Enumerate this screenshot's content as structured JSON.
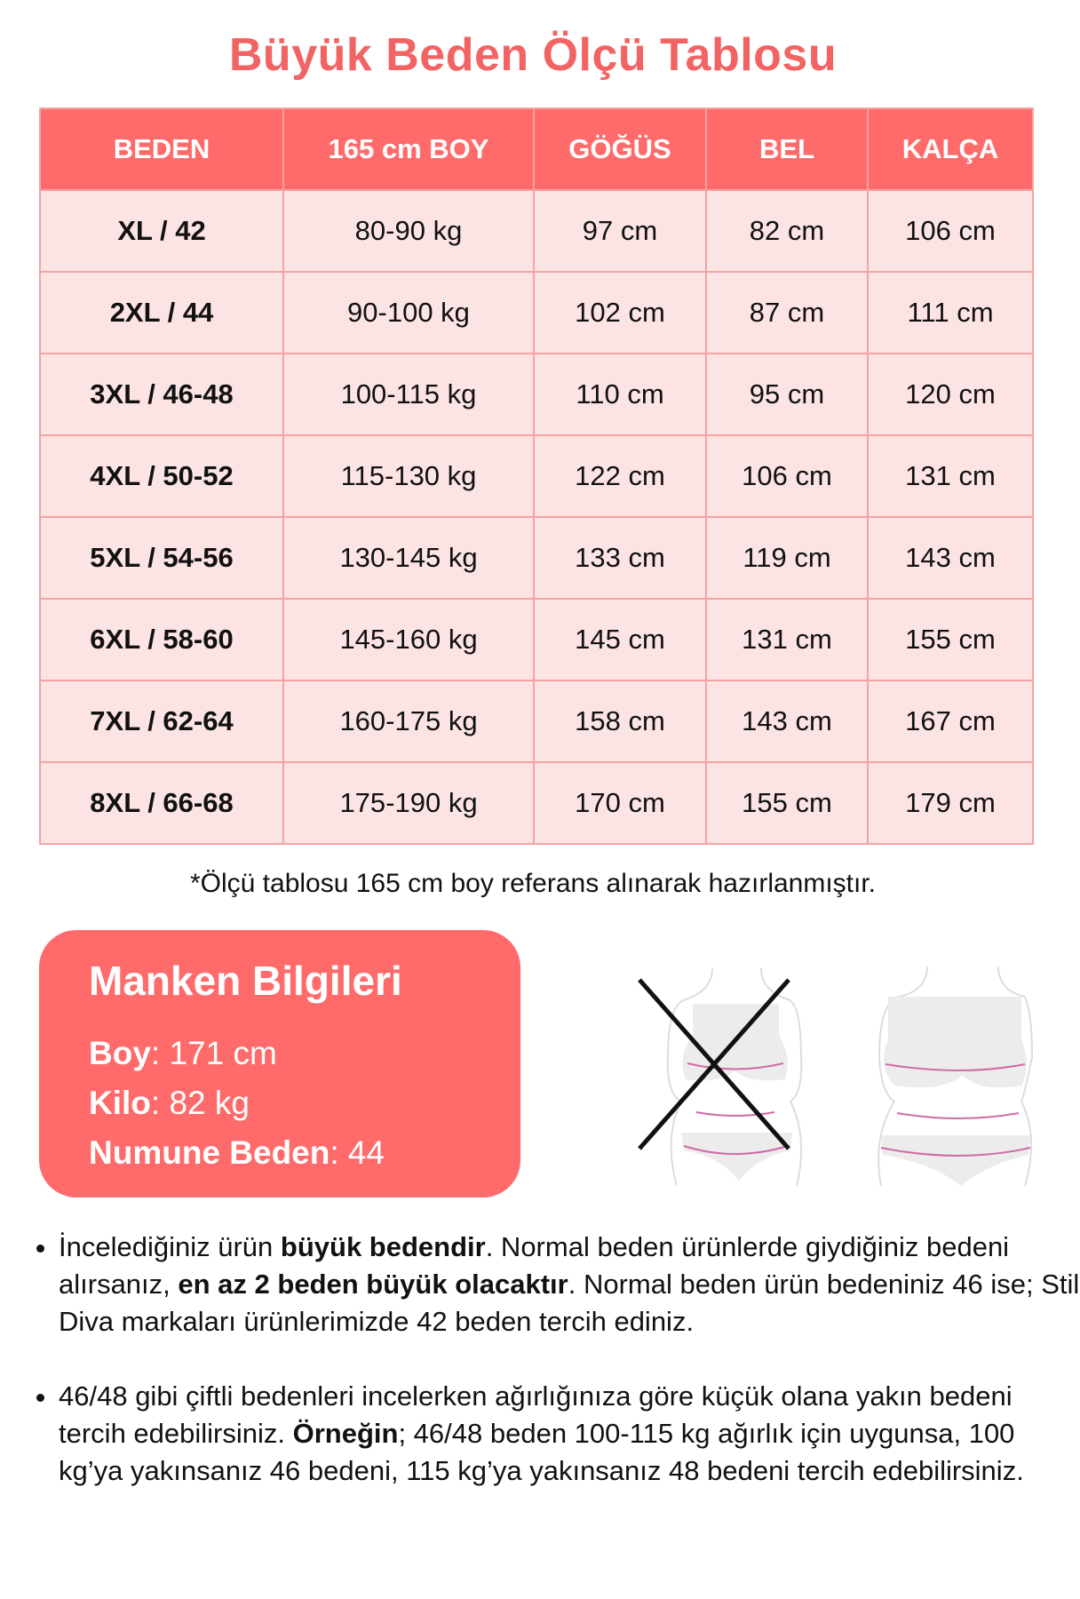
{
  "title": "Büyük Beden Ölçü Tablosu",
  "colors": {
    "accent": "#ff6b6b",
    "row_bg": "#fde4e4",
    "border": "#f3a3a3"
  },
  "table": {
    "headers": [
      "BEDEN",
      "165 cm BOY",
      "GÖĞÜS",
      "BEL",
      "KALÇA"
    ],
    "rows": [
      [
        "XL / 42",
        "80-90 kg",
        "97 cm",
        "82 cm",
        "106 cm"
      ],
      [
        "2XL / 44",
        "90-100 kg",
        "102 cm",
        "87 cm",
        "111 cm"
      ],
      [
        "3XL / 46-48",
        "100-115 kg",
        "110 cm",
        "95 cm",
        "120 cm"
      ],
      [
        "4XL / 50-52",
        "115-130 kg",
        "122 cm",
        "106 cm",
        "131 cm"
      ],
      [
        "5XL / 54-56",
        "130-145 kg",
        "133 cm",
        "119 cm",
        "143 cm"
      ],
      [
        "6XL / 58-60",
        "145-160 kg",
        "145 cm",
        "131 cm",
        "155 cm"
      ],
      [
        "7XL / 62-64",
        "160-175 kg",
        "158 cm",
        "143 cm",
        "167 cm"
      ],
      [
        "8XL / 66-68",
        "175-190 kg",
        "170 cm",
        "155 cm",
        "179 cm"
      ]
    ]
  },
  "note": "*Ölçü tablosu 165 cm boy referans alınarak hazırlanmıştır.",
  "model": {
    "heading": "Manken Bilgileri",
    "items": [
      {
        "label": "Boy",
        "value": ": 171 cm"
      },
      {
        "label": "Kilo",
        "value": ": 82 kg"
      },
      {
        "label": "Numune Beden",
        "value": ": 44"
      }
    ]
  },
  "figures": {
    "left": "body-silhouette-crossed-icon",
    "right": "body-silhouette-plus-size-icon"
  },
  "bullets": [
    {
      "parts": [
        {
          "t": "İncelediğiniz ürün ",
          "b": false
        },
        {
          "t": "büyük bedendir",
          "b": true
        },
        {
          "t": ". Normal beden ürünlerde giydiğiniz bedeni alırsanız, ",
          "b": false
        },
        {
          "t": "en az 2 beden büyük olacaktır",
          "b": true
        },
        {
          "t": ". Normal beden ürün bedeniniz 46 ise; Stil Diva markaları ürünlerimizde 42 beden tercih ediniz.",
          "b": false
        }
      ]
    },
    {
      "parts": [
        {
          "t": "46/48 gibi çiftli bedenleri incelerken ağırlığınıza göre küçük olana yakın bedeni tercih edebilirsiniz. ",
          "b": false
        },
        {
          "t": "Örneğin",
          "b": true
        },
        {
          "t": "; 46/48 beden 100-115 kg ağırlık için uygunsa, 100 kg’ya yakınsanız 46 bedeni, 115 kg’ya yakınsanız 48 bedeni tercih edebilirsiniz.",
          "b": false
        }
      ]
    }
  ]
}
